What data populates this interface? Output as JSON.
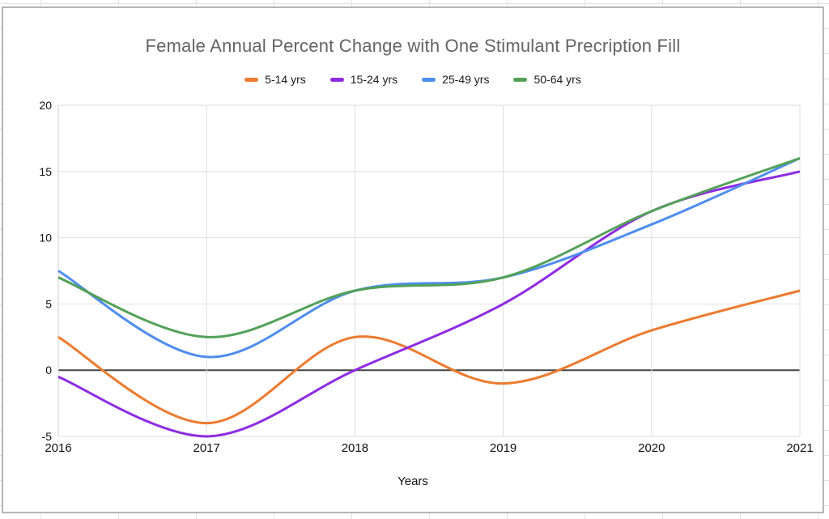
{
  "chart_data": {
    "type": "line",
    "title": "Female Annual Percent Change with One Stimulant Precription Fill",
    "xlabel": "Years",
    "ylabel": "",
    "categories": [
      "2016",
      "2017",
      "2018",
      "2019",
      "2020",
      "2021"
    ],
    "series": [
      {
        "name": "5-14 yrs",
        "color": "#ED7A2F",
        "values": [
          2.5,
          -4,
          2.5,
          -1,
          3,
          6
        ]
      },
      {
        "name": "15-24 yrs",
        "color": "#8E2BE2",
        "values": [
          -0.5,
          -5,
          0,
          5,
          12,
          15
        ]
      },
      {
        "name": "25-49 yrs",
        "color": "#4E8DF0",
        "values": [
          7.5,
          1,
          6,
          7,
          11,
          16
        ]
      },
      {
        "name": "50-64 yrs",
        "color": "#53A158",
        "values": [
          7,
          2.5,
          6,
          7,
          12,
          16
        ]
      }
    ],
    "ylim": [
      -5,
      20
    ],
    "yticks": [
      "20",
      "15",
      "10",
      "5",
      "0",
      "-5"
    ],
    "grid": true,
    "legend_position": "top",
    "smooth": true
  },
  "colors": {
    "title_text": "#646464",
    "axis_text": "#111111",
    "grid_line": "#dedede",
    "axis_line": "#cfcfcf",
    "zero_line": "#444444",
    "card_border": "#b5b5b5",
    "sheet_grid": "#e2e2e2"
  }
}
